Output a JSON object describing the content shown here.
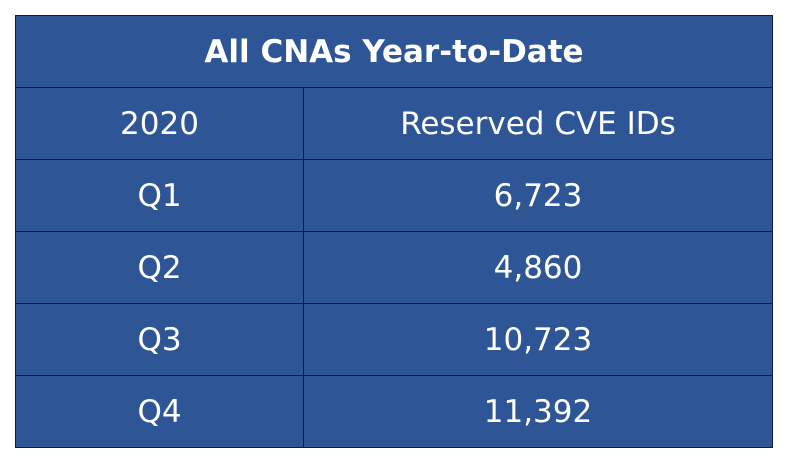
{
  "title": "All CNAs Year-to-Date",
  "headers": {
    "year": "2020",
    "metric": "Reserved CVE IDs"
  },
  "rows": [
    {
      "quarter": "Q1",
      "value": "6,723"
    },
    {
      "quarter": "Q2",
      "value": "4,860"
    },
    {
      "quarter": "Q3",
      "value": "10,723"
    },
    {
      "quarter": "Q4",
      "value": "11,392"
    }
  ],
  "colors": {
    "cell_background": "#2e5596",
    "text": "#ffffff",
    "border": "#0d1b33"
  }
}
